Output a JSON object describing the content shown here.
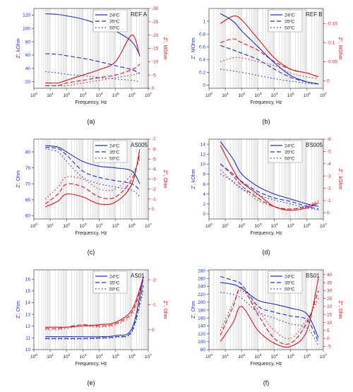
{
  "colors": {
    "primary": "#1f2fd0",
    "secondary": "#e0141c",
    "grid": "#c6c6c6",
    "frame": "#555555"
  },
  "legend_labels": [
    "24ºC",
    "35ºC",
    "50ºC"
  ],
  "chart_data": [
    {
      "panel": "a",
      "caption": "(a)",
      "name": "REF A",
      "type": "line",
      "xlabel": "Frequency, Hz",
      "ylabel": "Z', kOhm",
      "y2label": "Z'', MOhm",
      "xscale": "log",
      "xlim": [
        1,
        10000000
      ],
      "ylim": [
        10,
        130
      ],
      "y2lim": [
        0,
        -30
      ],
      "yticks": [
        20,
        40,
        60,
        80,
        100,
        120
      ],
      "y2ticks": [
        0,
        -5,
        -10,
        -15,
        -20,
        -25,
        -30
      ],
      "series_z1": [
        {
          "name": "24ºC",
          "x": [
            5,
            30,
            100,
            1000,
            10000,
            100000,
            1000000,
            3000000
          ],
          "y": [
            122,
            121,
            119,
            114,
            106,
            96,
            80,
            60
          ]
        },
        {
          "name": "35ºC",
          "x": [
            5,
            30,
            100,
            1000,
            10000,
            100000,
            1000000,
            3000000
          ],
          "y": [
            62,
            61,
            59,
            55,
            50,
            44,
            38,
            32
          ]
        },
        {
          "name": "50ºC",
          "x": [
            5,
            30,
            100,
            1000,
            10000,
            100000,
            1000000,
            3000000
          ],
          "y": [
            35,
            33,
            31,
            29,
            26,
            24,
            22,
            20
          ]
        }
      ],
      "series_z2": [
        {
          "name": "24ºC",
          "x": [
            5,
            30,
            100,
            1000,
            10000,
            100000,
            1000000,
            3000000
          ],
          "y": [
            -2,
            -2,
            -3,
            -5,
            -7,
            -10,
            -20,
            -12
          ]
        },
        {
          "name": "35ºC",
          "x": [
            5,
            30,
            100,
            1000,
            10000,
            100000,
            1000000,
            3000000
          ],
          "y": [
            -1,
            -1,
            -2,
            -3,
            -4,
            -5,
            -7,
            -9
          ]
        },
        {
          "name": "50ºC",
          "x": [
            5,
            30,
            100,
            1000,
            10000,
            100000,
            1000000,
            3000000
          ],
          "y": [
            -1,
            -1,
            -1,
            -2,
            -3,
            -4,
            -5,
            -6
          ]
        }
      ]
    },
    {
      "panel": "b",
      "caption": "(b)",
      "name": "REF B",
      "type": "line",
      "xlabel": "Frequency, Hz",
      "ylabel": "Z', MOhm",
      "y2label": "Z'', MOhm",
      "xscale": "log",
      "xlim": [
        1,
        10000000
      ],
      "ylim": [
        -0.05,
        1.2
      ],
      "y2lim": [
        0.02,
        -0.19
      ],
      "yticks": [
        0.0,
        0.2,
        0.4,
        0.6,
        0.8,
        1.0
      ],
      "y2ticks": [
        0.0,
        -0.05,
        -0.1,
        -0.15
      ],
      "series_z1": [
        {
          "name": "24ºC",
          "x": [
            5,
            30,
            100,
            1000,
            10000,
            100000,
            1000000,
            5000000
          ],
          "y": [
            1.12,
            1.0,
            0.85,
            0.6,
            0.35,
            0.15,
            0.05,
            0.02
          ]
        },
        {
          "name": "35ºC",
          "x": [
            5,
            30,
            100,
            1000,
            10000,
            100000,
            1000000,
            5000000
          ],
          "y": [
            0.62,
            0.55,
            0.5,
            0.4,
            0.25,
            0.12,
            0.05,
            0.02
          ]
        },
        {
          "name": "50ºC",
          "x": [
            5,
            30,
            100,
            1000,
            10000,
            100000,
            1000000,
            5000000
          ],
          "y": [
            0.25,
            0.22,
            0.2,
            0.15,
            0.1,
            0.06,
            0.03,
            0.01
          ]
        }
      ],
      "series_z2": [
        {
          "name": "24ºC",
          "x": [
            5,
            30,
            100,
            1000,
            10000,
            100000,
            1000000,
            5000000
          ],
          "y": [
            -0.15,
            -0.17,
            -0.16,
            -0.11,
            -0.06,
            -0.03,
            -0.02,
            -0.01
          ]
        },
        {
          "name": "35ºC",
          "x": [
            5,
            30,
            100,
            1000,
            10000,
            100000,
            1000000,
            5000000
          ],
          "y": [
            -0.1,
            -0.11,
            -0.1,
            -0.08,
            -0.05,
            -0.03,
            -0.02,
            -0.01
          ]
        },
        {
          "name": "50ºC",
          "x": [
            5,
            30,
            100,
            1000,
            10000,
            100000,
            1000000,
            5000000
          ],
          "y": [
            -0.05,
            -0.06,
            -0.06,
            -0.05,
            -0.04,
            -0.02,
            -0.01,
            -0.005
          ]
        }
      ]
    },
    {
      "panel": "c",
      "caption": "(c)",
      "name": "AS005",
      "type": "line",
      "xlabel": "Frequency, Hz",
      "ylabel": "Z', Ohm",
      "y2label": "Z'', Ohm",
      "xscale": "log",
      "xlim": [
        1,
        10000000
      ],
      "ylim": [
        59,
        84
      ],
      "y2lim": [
        1,
        -7
      ],
      "yticks": [
        60,
        65,
        70,
        75,
        80
      ],
      "y2ticks": [
        0,
        -1,
        -2,
        -3,
        -4,
        -5,
        -6,
        -7
      ],
      "series_z1": [
        {
          "name": "24ºC",
          "x": [
            5,
            30,
            100,
            1000,
            10000,
            100000,
            1000000,
            3000000
          ],
          "y": [
            82,
            81.5,
            80,
            77,
            75.5,
            75,
            74,
            70
          ]
        },
        {
          "name": "35ºC",
          "x": [
            5,
            30,
            100,
            1000,
            10000,
            100000,
            1000000,
            3000000
          ],
          "y": [
            81.5,
            81,
            79,
            74,
            72,
            71,
            70,
            68
          ]
        },
        {
          "name": "50ºC",
          "x": [
            5,
            30,
            100,
            1000,
            10000,
            100000,
            1000000,
            3000000
          ],
          "y": [
            81,
            80,
            77,
            72,
            70,
            69,
            68,
            66
          ]
        }
      ],
      "series_z2": [
        {
          "name": "24ºC",
          "x": [
            5,
            30,
            100,
            1000,
            10000,
            100000,
            1000000,
            3000000
          ],
          "y": [
            -0.2,
            -0.8,
            -1.5,
            -1.2,
            -0.5,
            -0.7,
            -2.5,
            -6
          ]
        },
        {
          "name": "35ºC",
          "x": [
            5,
            30,
            100,
            1000,
            10000,
            100000,
            1000000,
            3000000
          ],
          "y": [
            -0.5,
            -1.5,
            -2.5,
            -2.2,
            -1.2,
            -1.2,
            -3,
            -5.5
          ]
        },
        {
          "name": "50ºC",
          "x": [
            5,
            30,
            100,
            1000,
            10000,
            100000,
            1000000,
            3000000
          ],
          "y": [
            -1,
            -2.2,
            -3.2,
            -3,
            -2,
            -2,
            -3.5,
            -5
          ]
        }
      ]
    },
    {
      "panel": "d",
      "caption": "(d)",
      "name": "BS005",
      "type": "line",
      "xlabel": "Frequency, Hz",
      "ylabel": "Z', kOhm",
      "y2label": "Z'', kOhm",
      "xscale": "log",
      "xlim": [
        1,
        10000000
      ],
      "ylim": [
        -1,
        15
      ],
      "y2lim": [
        0.5,
        -6
      ],
      "yticks": [
        0,
        2,
        4,
        6,
        8,
        10,
        12,
        14
      ],
      "y2ticks": [
        0,
        -1,
        -2,
        -3,
        -4,
        -5,
        -6
      ],
      "series_z1": [
        {
          "name": "24ºC",
          "x": [
            5,
            30,
            100,
            1000,
            10000,
            100000,
            1000000,
            5000000
          ],
          "y": [
            14.5,
            11,
            8,
            5.5,
            4,
            3,
            2,
            1.5
          ]
        },
        {
          "name": "35ºC",
          "x": [
            5,
            30,
            100,
            1000,
            10000,
            100000,
            1000000,
            5000000
          ],
          "y": [
            10,
            8,
            6.5,
            4.5,
            3.2,
            2.5,
            1.5,
            1
          ]
        },
        {
          "name": "50ºC",
          "x": [
            5,
            30,
            100,
            1000,
            10000,
            100000,
            1000000,
            5000000
          ],
          "y": [
            8,
            6.5,
            5,
            3.8,
            2.8,
            2,
            1.2,
            0.8
          ]
        }
      ],
      "series_z2": [
        {
          "name": "24ºC",
          "x": [
            5,
            30,
            100,
            1000,
            10000,
            100000,
            1000000,
            5000000
          ],
          "y": [
            -5.5,
            -3.5,
            -2.5,
            -1.5,
            -0.5,
            -0.2,
            -0.4,
            -0.8
          ]
        },
        {
          "name": "35ºC",
          "x": [
            5,
            30,
            100,
            1000,
            10000,
            100000,
            1000000,
            5000000
          ],
          "y": [
            -4,
            -3,
            -2.2,
            -1.2,
            -0.5,
            -0.3,
            -0.5,
            -0.9
          ]
        },
        {
          "name": "50ºC",
          "x": [
            5,
            30,
            100,
            1000,
            10000,
            100000,
            1000000,
            5000000
          ],
          "y": [
            -3.5,
            -2.5,
            -2,
            -1,
            -0.5,
            -0.3,
            -0.6,
            -1
          ]
        }
      ]
    },
    {
      "panel": "e",
      "caption": "(e)",
      "name": "AS01",
      "type": "line",
      "xlabel": "Frequency, Hz",
      "ylabel": "Z', Ohm",
      "y2label": "Z'', Ohm",
      "xscale": "log",
      "xlim": [
        1,
        10000000
      ],
      "ylim": [
        10,
        16.8
      ],
      "y2lim": [
        0.8,
        -2.4
      ],
      "yticks": [
        10,
        11,
        12,
        13,
        14,
        15,
        16
      ],
      "y2ticks": [
        0,
        -1,
        -2
      ],
      "series_z1": [
        {
          "name": "24ºC",
          "x": [
            5,
            30,
            100,
            1000,
            10000,
            100000,
            1000000,
            5000000
          ],
          "y": [
            11.1,
            11.1,
            11.1,
            11.1,
            11.1,
            11.2,
            11.8,
            16.2
          ]
        },
        {
          "name": "35ºC",
          "x": [
            5,
            30,
            100,
            1000,
            10000,
            100000,
            1000000,
            5000000
          ],
          "y": [
            10.95,
            10.95,
            10.95,
            10.95,
            11.0,
            11.1,
            11.6,
            15.5
          ]
        },
        {
          "name": "50ºC",
          "x": [
            5,
            30,
            100,
            1000,
            10000,
            100000,
            1000000,
            5000000
          ],
          "y": [
            10.9,
            10.9,
            10.9,
            10.9,
            10.95,
            11.05,
            11.5,
            15.0
          ]
        }
      ],
      "series_z2": [
        {
          "name": "24ºC",
          "x": [
            5,
            30,
            100,
            1000,
            10000,
            100000,
            1000000,
            5000000
          ],
          "y": [
            -0.1,
            -0.1,
            -0.1,
            -0.15,
            -0.2,
            -0.3,
            -0.8,
            -2.1
          ]
        },
        {
          "name": "35ºC",
          "x": [
            5,
            30,
            100,
            1000,
            10000,
            100000,
            1000000,
            5000000
          ],
          "y": [
            -0.05,
            -0.05,
            -0.1,
            -0.2,
            -0.15,
            -0.25,
            -0.7,
            -2.0
          ]
        },
        {
          "name": "50ºC",
          "x": [
            5,
            30,
            100,
            1000,
            10000,
            100000,
            1000000,
            5000000
          ],
          "y": [
            0,
            0,
            -0.05,
            -0.15,
            -0.1,
            -0.2,
            -0.6,
            -1.8
          ]
        }
      ]
    },
    {
      "panel": "f",
      "caption": "(f)",
      "name": "BS01",
      "type": "line",
      "xlabel": "Frequency, Hz",
      "ylabel": "Z', Ohm",
      "y2label": "Z'', Ohm",
      "xscale": "log",
      "xlim": [
        1,
        10000000
      ],
      "ylim": [
        80,
        282
      ],
      "y2lim": [
        -7,
        43
      ],
      "yticks": [
        80,
        100,
        120,
        140,
        160,
        180,
        200,
        220,
        240,
        260,
        280
      ],
      "y2ticks": [
        -5,
        0,
        5,
        10,
        15,
        20,
        25,
        30,
        35,
        40
      ],
      "series_z1": [
        {
          "name": "24ºC",
          "x": [
            5,
            30,
            100,
            1000,
            10000,
            100000,
            1000000,
            5000000
          ],
          "y": [
            250,
            245,
            235,
            205,
            195,
            185,
            170,
            110
          ]
        },
        {
          "name": "35ºC",
          "x": [
            5,
            30,
            100,
            1000,
            10000,
            100000,
            1000000,
            5000000
          ],
          "y": [
            265,
            255,
            245,
            190,
            175,
            165,
            155,
            100
          ]
        },
        {
          "name": "50ºC",
          "x": [
            5,
            30,
            100,
            1000,
            10000,
            100000,
            1000000,
            5000000
          ],
          "y": [
            225,
            220,
            210,
            175,
            160,
            145,
            135,
            90
          ]
        }
      ],
      "series_z2": [
        {
          "name": "24ºC",
          "x": [
            5,
            30,
            100,
            1000,
            10000,
            100000,
            1000000,
            5000000
          ],
          "y": [
            -2,
            10,
            20,
            5,
            -3,
            -5,
            5,
            38
          ]
        },
        {
          "name": "35ºC",
          "x": [
            5,
            30,
            100,
            1000,
            10000,
            100000,
            1000000,
            5000000
          ],
          "y": [
            2,
            20,
            32,
            15,
            0,
            -3,
            10,
            30
          ]
        },
        {
          "name": "50ºC",
          "x": [
            5,
            30,
            100,
            1000,
            10000,
            100000,
            1000000,
            5000000
          ],
          "y": [
            5,
            22,
            30,
            18,
            5,
            0,
            12,
            25
          ]
        }
      ]
    }
  ]
}
